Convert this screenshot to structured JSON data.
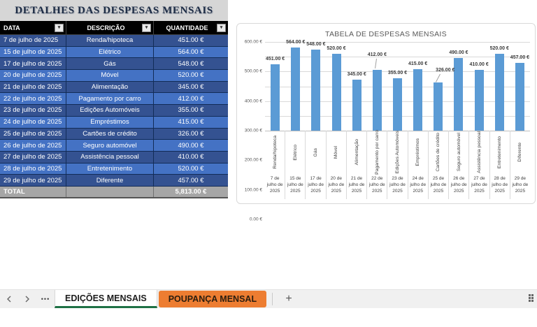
{
  "table": {
    "title": "DETALHES DAS DESPESAS MENSAIS",
    "columns": [
      "DATA",
      "DESCRIÇÃO",
      "QUANTIDADE"
    ],
    "rows": [
      {
        "date": "7 de julho de 2025",
        "description": "Renda/hipoteca",
        "amount": "451.00 €"
      },
      {
        "date": "15 de julho de 2025",
        "description": "Elétrico",
        "amount": "564.00 €"
      },
      {
        "date": "17 de julho de 2025",
        "description": "Gás",
        "amount": "548.00 €"
      },
      {
        "date": "20 de julho de 2025",
        "description": "Móvel",
        "amount": "520.00 €"
      },
      {
        "date": "21 de julho de 2025",
        "description": "Alimentação",
        "amount": "345.00 €"
      },
      {
        "date": "22 de julho de 2025",
        "description": "Pagamento por carro",
        "amount": "412.00 €"
      },
      {
        "date": "23 de julho de 2025",
        "description": "Edições Automóveis",
        "amount": "355.00 €"
      },
      {
        "date": "24 de julho de 2025",
        "description": "Empréstimos",
        "amount": "415.00 €"
      },
      {
        "date": "25 de julho de 2025",
        "description": "Cartões de crédito",
        "amount": "326.00 €"
      },
      {
        "date": "26 de julho de 2025",
        "description": "Seguro automóvel",
        "amount": "490.00 €"
      },
      {
        "date": "27 de julho de 2025",
        "description": "Assistência pessoal",
        "amount": "410.00 €"
      },
      {
        "date": "28 de julho de 2025",
        "description": "Entretenimento",
        "amount": "520.00 €"
      },
      {
        "date": "29 de julho de 2025",
        "description": "Diferente",
        "amount": "457.00 €"
      }
    ],
    "total_label": "TOTAL",
    "total_amount": "5,813.00 €"
  },
  "chart_data": {
    "type": "bar",
    "title": "TABELA DE DESPESAS MENSAIS",
    "categories": [
      "Renda/hipoteca",
      "Elétrico",
      "Gás",
      "Móvel",
      "Alimentação",
      "Pagamento por carro",
      "Edições Automóveis",
      "Empréstimos",
      "Cartões de crédito",
      "Seguro automóvel",
      "Assistência pessoal",
      "Entretenimento",
      "Diferente"
    ],
    "category_dates": [
      "7 de julho de 2025",
      "15 de julho de 2025",
      "17 de julho de 2025",
      "20 de julho de 2025",
      "21 de julho de 2025",
      "22 de julho de 2025",
      "23 de julho de 2025",
      "24 de julho de 2025",
      "25 de julho de 2025",
      "26 de julho de 2025",
      "27 de julho de 2025",
      "28 de julho de 2025",
      "29 de julho de 2025"
    ],
    "values": [
      451,
      564,
      548,
      520,
      345,
      412,
      355,
      415,
      326,
      490,
      410,
      520,
      457
    ],
    "value_labels": [
      "451.00 €",
      "564.00 €",
      "548.00 €",
      "520.00 €",
      "345.00 €",
      "412.00 €",
      "355.00 €",
      "415.00 €",
      "326.00 €",
      "490.00 €",
      "410.00 €",
      "520.00 €",
      "457.00 €"
    ],
    "ylabel_ticks": [
      "0.00 €",
      "100.00 €",
      "200.00 €",
      "300.00 €",
      "400.00 €",
      "500.00 €",
      "600.00 €"
    ],
    "ylim": [
      0,
      600
    ],
    "ytick_step": 100,
    "grid": true,
    "legend": "none",
    "callout_label_indices": [
      5,
      8
    ],
    "bar_color": "#5B9BD5"
  },
  "sheet_tabs": {
    "items": [
      {
        "label": "EDIÇÕES MENSAIS",
        "active": true
      },
      {
        "label": "POUPANÇA MENSAL",
        "active": false
      }
    ],
    "add_label": "+",
    "ellipsis": "•••"
  },
  "colors": {
    "row_light": "#4472C4",
    "row_dark": "#345291",
    "total_bg": "#A6A6A6",
    "bar": "#5B9BD5",
    "tab_orange": "#ED7D31",
    "tab_green": "#1E7145",
    "title_band": "#D6D6D6"
  }
}
